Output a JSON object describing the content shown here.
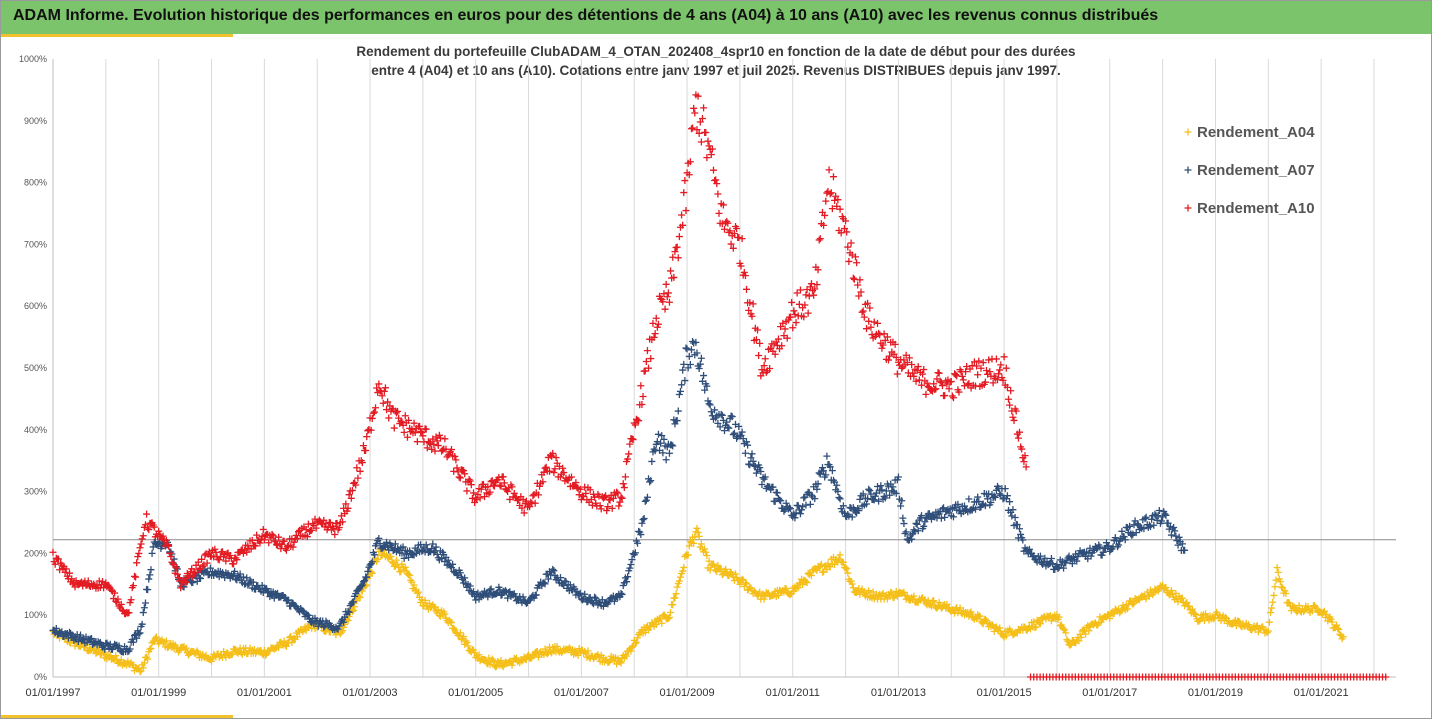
{
  "header": {
    "title": "ADAM Informe. Evolution historique des performances en euros pour des détentions de 4 ans (A04) à 10 ans (A10) avec les revenus connus distribués"
  },
  "colors": {
    "header_bg": "#7cc46b",
    "accent": "#f2c12e",
    "A04": "#f5bf1a",
    "A07": "#2f4e79",
    "A10": "#e31b23"
  },
  "chart_data": {
    "type": "scatter",
    "title_lines": [
      "Rendement du portefeuille ClubADAM_4_OTAN_202408_4spr10  en fonction de la date de début pour des durées",
      "entre 4 (A04) et 10 ans (A10). Cotations entre janv 1997 et juil 2025. Revenus DISTRIBUES depuis janv 1997."
    ],
    "xlabel": "",
    "ylabel": "",
    "ylim": [
      0,
      1000
    ],
    "xlim": [
      "1997-01-01",
      "2022-06-01"
    ],
    "y_ticks": [
      "0%",
      "100%",
      "200%",
      "300%",
      "400%",
      "500%",
      "600%",
      "700%",
      "800%",
      "900%",
      "1000%"
    ],
    "x_ticks": [
      "01/01/1997",
      "01/01/1999",
      "01/01/2001",
      "01/01/2003",
      "01/01/2005",
      "01/01/2007",
      "01/01/2009",
      "01/01/2011",
      "01/01/2013",
      "01/01/2015",
      "01/01/2017",
      "01/01/2019",
      "01/01/2021"
    ],
    "marker": "+",
    "grid": "vertical",
    "reference_line_y": 222,
    "legend_position": "top-right",
    "series": [
      {
        "name": "Rendement_A04",
        "color": "#f5bf1a",
        "points": [
          [
            "1997-01",
            72
          ],
          [
            "1997-06",
            55
          ],
          [
            "1998-01",
            35
          ],
          [
            "1998-06",
            22
          ],
          [
            "1998-09",
            10
          ],
          [
            "1998-12",
            60
          ],
          [
            "1999-06",
            45
          ],
          [
            "2000-01",
            30
          ],
          [
            "2000-06",
            42
          ],
          [
            "2001-01",
            40
          ],
          [
            "2001-06",
            55
          ],
          [
            "2001-12",
            85
          ],
          [
            "2002-06",
            70
          ],
          [
            "2002-12",
            150
          ],
          [
            "2003-03",
            200
          ],
          [
            "2003-06",
            190
          ],
          [
            "2003-09",
            170
          ],
          [
            "2004-01",
            120
          ],
          [
            "2004-06",
            100
          ],
          [
            "2005-01",
            35
          ],
          [
            "2005-06",
            20
          ],
          [
            "2006-01",
            30
          ],
          [
            "2006-06",
            45
          ],
          [
            "2007-01",
            40
          ],
          [
            "2007-06",
            30
          ],
          [
            "2007-10",
            25
          ],
          [
            "2008-03",
            75
          ],
          [
            "2008-09",
            100
          ],
          [
            "2009-01",
            200
          ],
          [
            "2009-03",
            235
          ],
          [
            "2009-06",
            180
          ],
          [
            "2009-12",
            160
          ],
          [
            "2010-06",
            130
          ],
          [
            "2011-01",
            140
          ],
          [
            "2011-06",
            170
          ],
          [
            "2011-12",
            195
          ],
          [
            "2012-03",
            140
          ],
          [
            "2012-09",
            130
          ],
          [
            "2013-01",
            135
          ],
          [
            "2013-06",
            125
          ],
          [
            "2014-01",
            110
          ],
          [
            "2014-06",
            100
          ],
          [
            "2015-01",
            70
          ],
          [
            "2015-06",
            80
          ],
          [
            "2016-01",
            100
          ],
          [
            "2016-04",
            50
          ],
          [
            "2016-09",
            85
          ],
          [
            "2017-01",
            100
          ],
          [
            "2017-06",
            120
          ],
          [
            "2018-01",
            145
          ],
          [
            "2018-06",
            120
          ],
          [
            "2018-09",
            95
          ],
          [
            "2019-01",
            100
          ],
          [
            "2019-06",
            85
          ],
          [
            "2020-01",
            75
          ],
          [
            "2020-03",
            170
          ],
          [
            "2020-06",
            110
          ],
          [
            "2021-01",
            110
          ],
          [
            "2021-06",
            65
          ]
        ]
      },
      {
        "name": "Rendement_A07",
        "color": "#2f4e79",
        "points": [
          [
            "1997-01",
            75
          ],
          [
            "1997-06",
            65
          ],
          [
            "1998-01",
            50
          ],
          [
            "1998-06",
            45
          ],
          [
            "1998-09",
            80
          ],
          [
            "1998-12",
            215
          ],
          [
            "1999-03",
            220
          ],
          [
            "1999-06",
            150
          ],
          [
            "2000-01",
            170
          ],
          [
            "2000-06",
            165
          ],
          [
            "2001-01",
            140
          ],
          [
            "2001-06",
            125
          ],
          [
            "2001-12",
            90
          ],
          [
            "2002-06",
            80
          ],
          [
            "2002-12",
            160
          ],
          [
            "2003-03",
            220
          ],
          [
            "2003-09",
            200
          ],
          [
            "2004-03",
            210
          ],
          [
            "2004-09",
            170
          ],
          [
            "2005-01",
            130
          ],
          [
            "2005-06",
            140
          ],
          [
            "2006-01",
            120
          ],
          [
            "2006-06",
            170
          ],
          [
            "2007-01",
            130
          ],
          [
            "2007-06",
            120
          ],
          [
            "2007-10",
            130
          ],
          [
            "2008-03",
            250
          ],
          [
            "2008-06",
            390
          ],
          [
            "2008-09",
            360
          ],
          [
            "2009-01",
            520
          ],
          [
            "2009-03",
            540
          ],
          [
            "2009-06",
            440
          ],
          [
            "2009-12",
            400
          ],
          [
            "2010-06",
            320
          ],
          [
            "2011-01",
            260
          ],
          [
            "2011-06",
            300
          ],
          [
            "2011-09",
            350
          ],
          [
            "2012-01",
            260
          ],
          [
            "2012-06",
            290
          ],
          [
            "2013-01",
            310
          ],
          [
            "2013-03",
            220
          ],
          [
            "2013-06",
            250
          ],
          [
            "2014-01",
            270
          ],
          [
            "2014-06",
            280
          ],
          [
            "2015-01",
            300
          ],
          [
            "2015-06",
            200
          ],
          [
            "2016-01",
            180
          ],
          [
            "2016-06",
            195
          ],
          [
            "2017-01",
            210
          ],
          [
            "2017-06",
            240
          ],
          [
            "2018-01",
            260
          ],
          [
            "2018-06",
            205
          ]
        ]
      },
      {
        "name": "Rendement_A10",
        "color": "#e31b23",
        "points": [
          [
            "1997-01",
            195
          ],
          [
            "1997-06",
            150
          ],
          [
            "1998-01",
            150
          ],
          [
            "1998-06",
            100
          ],
          [
            "1998-10",
            255
          ],
          [
            "1999-03",
            210
          ],
          [
            "1999-06",
            150
          ],
          [
            "2000-01",
            200
          ],
          [
            "2000-06",
            190
          ],
          [
            "2001-01",
            230
          ],
          [
            "2001-06",
            210
          ],
          [
            "2001-12",
            245
          ],
          [
            "2002-06",
            240
          ],
          [
            "2002-12",
            370
          ],
          [
            "2003-03",
            480
          ],
          [
            "2003-06",
            420
          ],
          [
            "2004-01",
            390
          ],
          [
            "2004-06",
            370
          ],
          [
            "2005-01",
            290
          ],
          [
            "2005-06",
            320
          ],
          [
            "2006-01",
            270
          ],
          [
            "2006-06",
            350
          ],
          [
            "2007-01",
            300
          ],
          [
            "2007-06",
            280
          ],
          [
            "2007-10",
            290
          ],
          [
            "2008-03",
            470
          ],
          [
            "2008-06",
            580
          ],
          [
            "2008-09",
            620
          ],
          [
            "2009-01",
            790
          ],
          [
            "2009-03",
            930
          ],
          [
            "2009-06",
            850
          ],
          [
            "2009-09",
            740
          ],
          [
            "2010-01",
            700
          ],
          [
            "2010-06",
            500
          ],
          [
            "2011-01",
            590
          ],
          [
            "2011-06",
            620
          ],
          [
            "2011-09",
            800
          ],
          [
            "2012-01",
            720
          ],
          [
            "2012-06",
            580
          ],
          [
            "2013-01",
            510
          ],
          [
            "2013-06",
            480
          ],
          [
            "2014-01",
            470
          ],
          [
            "2014-06",
            490
          ],
          [
            "2015-01",
            500
          ],
          [
            "2015-06",
            340
          ]
        ]
      }
    ],
    "baseline_series_color": "#e31b23",
    "baseline_from": "2015-07",
    "baseline_to": "2022-04"
  }
}
